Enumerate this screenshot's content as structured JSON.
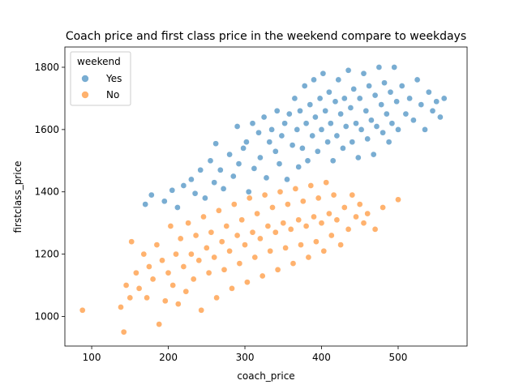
{
  "chart_data": {
    "type": "scatter",
    "title": "Coach price and first class price in the weekend compare to weekdays",
    "xlabel": "coach_price",
    "ylabel": "firstclass_price",
    "xlim": [
      65,
      590
    ],
    "ylim": [
      905,
      1865
    ],
    "xticks": [
      100,
      200,
      300,
      400,
      500
    ],
    "yticks": [
      1000,
      1200,
      1400,
      1600,
      1800
    ],
    "grid": false,
    "legend": {
      "title": "weekend",
      "position": "upper-left"
    },
    "series": [
      {
        "name": "Yes",
        "color": "#1f77b4",
        "points": [
          [
            170,
            1360
          ],
          [
            178,
            1390
          ],
          [
            195,
            1370
          ],
          [
            205,
            1405
          ],
          [
            212,
            1350
          ],
          [
            220,
            1420
          ],
          [
            230,
            1440
          ],
          [
            235,
            1395
          ],
          [
            242,
            1470
          ],
          [
            248,
            1380
          ],
          [
            255,
            1500
          ],
          [
            260,
            1430
          ],
          [
            262,
            1555
          ],
          [
            268,
            1470
          ],
          [
            272,
            1410
          ],
          [
            280,
            1520
          ],
          [
            285,
            1450
          ],
          [
            290,
            1610
          ],
          [
            292,
            1490
          ],
          [
            298,
            1540
          ],
          [
            302,
            1560
          ],
          [
            305,
            1400
          ],
          [
            310,
            1620
          ],
          [
            312,
            1475
          ],
          [
            318,
            1590
          ],
          [
            320,
            1510
          ],
          [
            325,
            1640
          ],
          [
            328,
            1445
          ],
          [
            332,
            1560
          ],
          [
            335,
            1600
          ],
          [
            340,
            1530
          ],
          [
            342,
            1660
          ],
          [
            345,
            1490
          ],
          [
            348,
            1580
          ],
          [
            352,
            1620
          ],
          [
            355,
            1440
          ],
          [
            358,
            1650
          ],
          [
            362,
            1550
          ],
          [
            365,
            1700
          ],
          [
            368,
            1600
          ],
          [
            370,
            1480
          ],
          [
            372,
            1660
          ],
          [
            375,
            1540
          ],
          [
            378,
            1740
          ],
          [
            380,
            1620
          ],
          [
            382,
            1500
          ],
          [
            385,
            1680
          ],
          [
            388,
            1580
          ],
          [
            390,
            1760
          ],
          [
            392,
            1640
          ],
          [
            395,
            1530
          ],
          [
            398,
            1700
          ],
          [
            400,
            1600
          ],
          [
            402,
            1780
          ],
          [
            405,
            1660
          ],
          [
            408,
            1560
          ],
          [
            410,
            1720
          ],
          [
            412,
            1620
          ],
          [
            415,
            1500
          ],
          [
            418,
            1690
          ],
          [
            420,
            1580
          ],
          [
            422,
            1760
          ],
          [
            425,
            1650
          ],
          [
            428,
            1540
          ],
          [
            430,
            1700
          ],
          [
            432,
            1610
          ],
          [
            435,
            1790
          ],
          [
            438,
            1670
          ],
          [
            440,
            1560
          ],
          [
            442,
            1730
          ],
          [
            445,
            1620
          ],
          [
            448,
            1510
          ],
          [
            450,
            1700
          ],
          [
            452,
            1600
          ],
          [
            455,
            1780
          ],
          [
            458,
            1660
          ],
          [
            460,
            1570
          ],
          [
            462,
            1740
          ],
          [
            465,
            1630
          ],
          [
            468,
            1520
          ],
          [
            470,
            1710
          ],
          [
            472,
            1610
          ],
          [
            475,
            1800
          ],
          [
            478,
            1680
          ],
          [
            480,
            1590
          ],
          [
            482,
            1750
          ],
          [
            485,
            1650
          ],
          [
            488,
            1560
          ],
          [
            490,
            1720
          ],
          [
            492,
            1620
          ],
          [
            495,
            1800
          ],
          [
            498,
            1690
          ],
          [
            500,
            1600
          ],
          [
            505,
            1740
          ],
          [
            510,
            1650
          ],
          [
            515,
            1700
          ],
          [
            520,
            1630
          ],
          [
            525,
            1760
          ],
          [
            530,
            1680
          ],
          [
            535,
            1600
          ],
          [
            540,
            1720
          ],
          [
            545,
            1660
          ],
          [
            550,
            1690
          ],
          [
            555,
            1640
          ],
          [
            560,
            1700
          ]
        ]
      },
      {
        "name": "No",
        "color": "#ff7f0e",
        "points": [
          [
            88,
            1020
          ],
          [
            138,
            1030
          ],
          [
            142,
            950
          ],
          [
            145,
            1100
          ],
          [
            150,
            1060
          ],
          [
            152,
            1240
          ],
          [
            158,
            1140
          ],
          [
            162,
            1090
          ],
          [
            168,
            1200
          ],
          [
            172,
            1060
          ],
          [
            175,
            1160
          ],
          [
            180,
            1120
          ],
          [
            185,
            1230
          ],
          [
            188,
            975
          ],
          [
            192,
            1180
          ],
          [
            196,
            1050
          ],
          [
            200,
            1140
          ],
          [
            203,
            1290
          ],
          [
            206,
            1100
          ],
          [
            210,
            1200
          ],
          [
            213,
            1040
          ],
          [
            216,
            1250
          ],
          [
            220,
            1160
          ],
          [
            223,
            1080
          ],
          [
            226,
            1300
          ],
          [
            230,
            1200
          ],
          [
            233,
            1120
          ],
          [
            236,
            1260
          ],
          [
            240,
            1180
          ],
          [
            243,
            1020
          ],
          [
            246,
            1320
          ],
          [
            250,
            1220
          ],
          [
            253,
            1140
          ],
          [
            256,
            1270
          ],
          [
            260,
            1190
          ],
          [
            263,
            1060
          ],
          [
            266,
            1340
          ],
          [
            270,
            1240
          ],
          [
            273,
            1150
          ],
          [
            276,
            1290
          ],
          [
            280,
            1210
          ],
          [
            283,
            1090
          ],
          [
            286,
            1360
          ],
          [
            290,
            1260
          ],
          [
            293,
            1170
          ],
          [
            296,
            1310
          ],
          [
            300,
            1230
          ],
          [
            303,
            1110
          ],
          [
            306,
            1380
          ],
          [
            310,
            1270
          ],
          [
            313,
            1190
          ],
          [
            316,
            1330
          ],
          [
            320,
            1250
          ],
          [
            323,
            1130
          ],
          [
            326,
            1390
          ],
          [
            330,
            1290
          ],
          [
            333,
            1210
          ],
          [
            336,
            1350
          ],
          [
            340,
            1270
          ],
          [
            343,
            1150
          ],
          [
            346,
            1400
          ],
          [
            350,
            1300
          ],
          [
            353,
            1220
          ],
          [
            356,
            1360
          ],
          [
            360,
            1280
          ],
          [
            363,
            1170
          ],
          [
            366,
            1410
          ],
          [
            370,
            1310
          ],
          [
            373,
            1230
          ],
          [
            376,
            1370
          ],
          [
            380,
            1290
          ],
          [
            383,
            1190
          ],
          [
            386,
            1420
          ],
          [
            390,
            1320
          ],
          [
            393,
            1240
          ],
          [
            396,
            1380
          ],
          [
            400,
            1300
          ],
          [
            403,
            1210
          ],
          [
            406,
            1430
          ],
          [
            410,
            1330
          ],
          [
            413,
            1260
          ],
          [
            416,
            1390
          ],
          [
            420,
            1310
          ],
          [
            425,
            1230
          ],
          [
            430,
            1350
          ],
          [
            435,
            1280
          ],
          [
            440,
            1390
          ],
          [
            445,
            1320
          ],
          [
            450,
            1360
          ],
          [
            455,
            1300
          ],
          [
            460,
            1330
          ],
          [
            470,
            1280
          ],
          [
            480,
            1350
          ],
          [
            500,
            1375
          ]
        ]
      }
    ]
  }
}
